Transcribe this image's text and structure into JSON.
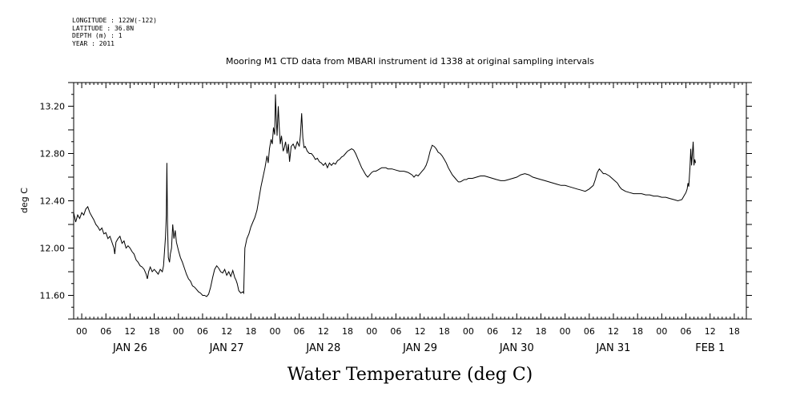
{
  "header": {
    "longitude": "LONGITUDE : 122W(-122)",
    "latitude": "LATITUDE : 36.8N",
    "depth": "DEPTH (m) : 1",
    "year": "YEAR : 2011"
  },
  "chart_data": {
    "type": "line",
    "title": "Mooring M1 CTD data from MBARI instrument id 1338 at original sampling intervals",
    "xlabel": "Water Temperature (deg C)",
    "ylabel": "deg C",
    "ylim": [
      11.4,
      13.4
    ],
    "yticks": [
      "11.60",
      "12.00",
      "12.40",
      "12.80",
      "13.20"
    ],
    "x_unit": "hours since JAN 26 00:00",
    "xlim": [
      -2,
      165
    ],
    "hour_tick_labels": [
      "00",
      "06",
      "12",
      "18"
    ],
    "day_labels": [
      "JAN 26",
      "JAN 27",
      "JAN 28",
      "JAN 29",
      "JAN 30",
      "JAN 31",
      "FEB  1"
    ],
    "grid": false,
    "color": "#000000",
    "series": [
      {
        "values": [
          [
            -2,
            12.3
          ],
          [
            -1.5,
            12.22
          ],
          [
            -1,
            12.28
          ],
          [
            -0.5,
            12.25
          ],
          [
            0,
            12.3
          ],
          [
            0.5,
            12.28
          ],
          [
            1,
            12.33
          ],
          [
            1.5,
            12.35
          ],
          [
            2,
            12.3
          ],
          [
            2.5,
            12.27
          ],
          [
            3,
            12.24
          ],
          [
            3.5,
            12.2
          ],
          [
            4,
            12.18
          ],
          [
            4.5,
            12.15
          ],
          [
            5,
            12.17
          ],
          [
            5.5,
            12.12
          ],
          [
            6,
            12.13
          ],
          [
            6.5,
            12.08
          ],
          [
            7,
            12.1
          ],
          [
            7.5,
            12.05
          ],
          [
            8,
            12.0
          ],
          [
            8.2,
            11.95
          ],
          [
            8.5,
            12.05
          ],
          [
            9,
            12.08
          ],
          [
            9.5,
            12.1
          ],
          [
            10,
            12.04
          ],
          [
            10.5,
            12.06
          ],
          [
            11,
            12.0
          ],
          [
            11.5,
            12.02
          ],
          [
            12,
            12.0
          ],
          [
            12.5,
            11.97
          ],
          [
            13,
            11.95
          ],
          [
            13.5,
            11.9
          ],
          [
            14,
            11.88
          ],
          [
            14.5,
            11.85
          ],
          [
            15,
            11.84
          ],
          [
            15.5,
            11.82
          ],
          [
            16,
            11.78
          ],
          [
            16.3,
            11.74
          ],
          [
            16.6,
            11.8
          ],
          [
            17,
            11.84
          ],
          [
            17.5,
            11.8
          ],
          [
            18,
            11.82
          ],
          [
            18.5,
            11.8
          ],
          [
            19,
            11.78
          ],
          [
            19.5,
            11.82
          ],
          [
            20,
            11.8
          ],
          [
            20.3,
            11.85
          ],
          [
            20.5,
            11.95
          ],
          [
            20.8,
            12.1
          ],
          [
            21,
            12.28
          ],
          [
            21.15,
            12.72
          ],
          [
            21.3,
            12.2
          ],
          [
            21.5,
            11.92
          ],
          [
            21.8,
            11.88
          ],
          [
            22,
            11.95
          ],
          [
            22.3,
            12.0
          ],
          [
            22.6,
            12.2
          ],
          [
            22.9,
            12.08
          ],
          [
            23.2,
            12.15
          ],
          [
            23.5,
            12.05
          ],
          [
            24,
            11.98
          ],
          [
            24.5,
            11.92
          ],
          [
            25,
            11.88
          ],
          [
            25.5,
            11.83
          ],
          [
            26,
            11.78
          ],
          [
            26.5,
            11.74
          ],
          [
            27,
            11.72
          ],
          [
            27.5,
            11.68
          ],
          [
            28,
            11.67
          ],
          [
            28.5,
            11.65
          ],
          [
            29,
            11.63
          ],
          [
            29.5,
            11.62
          ],
          [
            30,
            11.6
          ],
          [
            30.5,
            11.6
          ],
          [
            31,
            11.59
          ],
          [
            31.5,
            11.61
          ],
          [
            32,
            11.67
          ],
          [
            32.5,
            11.75
          ],
          [
            33,
            11.82
          ],
          [
            33.5,
            11.85
          ],
          [
            34,
            11.83
          ],
          [
            34.5,
            11.8
          ],
          [
            35,
            11.79
          ],
          [
            35.5,
            11.82
          ],
          [
            36,
            11.77
          ],
          [
            36.5,
            11.8
          ],
          [
            37,
            11.76
          ],
          [
            37.5,
            11.81
          ],
          [
            38,
            11.75
          ],
          [
            38.3,
            11.73
          ],
          [
            38.6,
            11.7
          ],
          [
            39,
            11.64
          ],
          [
            39.5,
            11.62
          ],
          [
            40,
            11.63
          ],
          [
            40.2,
            11.62
          ],
          [
            40.5,
            12.0
          ],
          [
            41,
            12.08
          ],
          [
            41.5,
            12.12
          ],
          [
            42,
            12.18
          ],
          [
            42.5,
            12.22
          ],
          [
            43,
            12.26
          ],
          [
            43.5,
            12.32
          ],
          [
            44,
            12.42
          ],
          [
            44.5,
            12.52
          ],
          [
            45,
            12.6
          ],
          [
            45.5,
            12.68
          ],
          [
            46,
            12.78
          ],
          [
            46.3,
            12.72
          ],
          [
            46.6,
            12.84
          ],
          [
            47,
            12.92
          ],
          [
            47.3,
            12.88
          ],
          [
            47.6,
            13.02
          ],
          [
            47.9,
            12.96
          ],
          [
            48.1,
            13.3
          ],
          [
            48.3,
            13.1
          ],
          [
            48.5,
            12.95
          ],
          [
            48.8,
            13.2
          ],
          [
            49,
            13.05
          ],
          [
            49.3,
            12.88
          ],
          [
            49.6,
            12.95
          ],
          [
            50,
            12.82
          ],
          [
            50.3,
            12.85
          ],
          [
            50.6,
            12.9
          ],
          [
            51,
            12.8
          ],
          [
            51.3,
            12.88
          ],
          [
            51.6,
            12.73
          ],
          [
            52,
            12.86
          ],
          [
            52.5,
            12.88
          ],
          [
            53,
            12.84
          ],
          [
            53.5,
            12.9
          ],
          [
            54,
            12.86
          ],
          [
            54.3,
            12.96
          ],
          [
            54.6,
            13.14
          ],
          [
            54.9,
            12.93
          ],
          [
            55.2,
            12.85
          ],
          [
            55.5,
            12.86
          ],
          [
            56,
            12.82
          ],
          [
            56.5,
            12.8
          ],
          [
            57,
            12.8
          ],
          [
            57.5,
            12.78
          ],
          [
            58,
            12.75
          ],
          [
            58.5,
            12.76
          ],
          [
            59,
            12.73
          ],
          [
            59.5,
            12.72
          ],
          [
            60,
            12.7
          ],
          [
            60.5,
            12.72
          ],
          [
            61,
            12.68
          ],
          [
            61.5,
            12.72
          ],
          [
            62,
            12.7
          ],
          [
            62.5,
            12.72
          ],
          [
            63,
            12.71
          ],
          [
            63.5,
            12.74
          ],
          [
            64,
            12.75
          ],
          [
            64.5,
            12.77
          ],
          [
            65,
            12.78
          ],
          [
            65.5,
            12.8
          ],
          [
            66,
            12.82
          ],
          [
            66.5,
            12.83
          ],
          [
            67,
            12.84
          ],
          [
            67.5,
            12.83
          ],
          [
            68,
            12.8
          ],
          [
            68.5,
            12.76
          ],
          [
            69,
            12.72
          ],
          [
            69.5,
            12.68
          ],
          [
            70,
            12.65
          ],
          [
            70.5,
            12.62
          ],
          [
            71,
            12.6
          ],
          [
            71.5,
            12.62
          ],
          [
            72,
            12.64
          ],
          [
            72.5,
            12.65
          ],
          [
            73,
            12.65
          ],
          [
            73.5,
            12.66
          ],
          [
            74,
            12.67
          ],
          [
            74.5,
            12.68
          ],
          [
            75,
            12.68
          ],
          [
            75.5,
            12.68
          ],
          [
            76,
            12.67
          ],
          [
            76.5,
            12.67
          ],
          [
            77,
            12.67
          ],
          [
            78,
            12.66
          ],
          [
            79,
            12.65
          ],
          [
            80,
            12.65
          ],
          [
            81,
            12.64
          ],
          [
            81.5,
            12.63
          ],
          [
            82,
            12.62
          ],
          [
            82.5,
            12.6
          ],
          [
            83,
            12.62
          ],
          [
            83.5,
            12.61
          ],
          [
            84,
            12.63
          ],
          [
            84.5,
            12.65
          ],
          [
            85,
            12.67
          ],
          [
            85.5,
            12.7
          ],
          [
            86,
            12.75
          ],
          [
            86.5,
            12.82
          ],
          [
            87,
            12.87
          ],
          [
            87.5,
            12.86
          ],
          [
            88,
            12.84
          ],
          [
            88.5,
            12.81
          ],
          [
            89,
            12.8
          ],
          [
            89.5,
            12.78
          ],
          [
            90,
            12.75
          ],
          [
            90.5,
            12.72
          ],
          [
            91,
            12.68
          ],
          [
            91.5,
            12.65
          ],
          [
            92,
            12.62
          ],
          [
            92.5,
            12.6
          ],
          [
            93,
            12.58
          ],
          [
            93.5,
            12.56
          ],
          [
            94,
            12.56
          ],
          [
            94.5,
            12.57
          ],
          [
            95,
            12.58
          ],
          [
            95.5,
            12.58
          ],
          [
            96,
            12.59
          ],
          [
            97,
            12.59
          ],
          [
            98,
            12.6
          ],
          [
            99,
            12.61
          ],
          [
            100,
            12.61
          ],
          [
            101,
            12.6
          ],
          [
            102,
            12.59
          ],
          [
            103,
            12.58
          ],
          [
            104,
            12.57
          ],
          [
            105,
            12.57
          ],
          [
            106,
            12.58
          ],
          [
            107,
            12.59
          ],
          [
            108,
            12.6
          ],
          [
            109,
            12.62
          ],
          [
            110,
            12.63
          ],
          [
            111,
            12.62
          ],
          [
            112,
            12.6
          ],
          [
            113,
            12.59
          ],
          [
            114,
            12.58
          ],
          [
            115,
            12.57
          ],
          [
            116,
            12.56
          ],
          [
            117,
            12.55
          ],
          [
            118,
            12.54
          ],
          [
            119,
            12.53
          ],
          [
            120,
            12.53
          ],
          [
            121,
            12.52
          ],
          [
            122,
            12.51
          ],
          [
            123,
            12.5
          ],
          [
            124,
            12.49
          ],
          [
            125,
            12.48
          ],
          [
            126,
            12.5
          ],
          [
            127,
            12.53
          ],
          [
            127.5,
            12.58
          ],
          [
            128,
            12.64
          ],
          [
            128.5,
            12.67
          ],
          [
            129,
            12.65
          ],
          [
            129.5,
            12.63
          ],
          [
            130,
            12.63
          ],
          [
            131,
            12.61
          ],
          [
            132,
            12.58
          ],
          [
            133,
            12.55
          ],
          [
            133.5,
            12.52
          ],
          [
            134,
            12.5
          ],
          [
            135,
            12.48
          ],
          [
            136,
            12.47
          ],
          [
            137,
            12.46
          ],
          [
            138,
            12.46
          ],
          [
            139,
            12.46
          ],
          [
            140,
            12.45
          ],
          [
            141,
            12.45
          ],
          [
            142,
            12.44
          ],
          [
            143,
            12.44
          ],
          [
            144,
            12.43
          ],
          [
            145,
            12.43
          ],
          [
            146,
            12.42
          ],
          [
            147,
            12.41
          ],
          [
            148,
            12.4
          ],
          [
            149,
            12.41
          ],
          [
            149.5,
            12.44
          ],
          [
            150,
            12.47
          ],
          [
            150.3,
            12.5
          ],
          [
            150.5,
            12.55
          ],
          [
            150.7,
            12.52
          ],
          [
            151,
            12.68
          ],
          [
            151.2,
            12.84
          ],
          [
            151.4,
            12.7
          ],
          [
            151.6,
            12.8
          ],
          [
            151.8,
            12.9
          ],
          [
            152,
            12.7
          ],
          [
            152.2,
            12.75
          ],
          [
            152.4,
            12.72
          ]
        ]
      }
    ]
  }
}
